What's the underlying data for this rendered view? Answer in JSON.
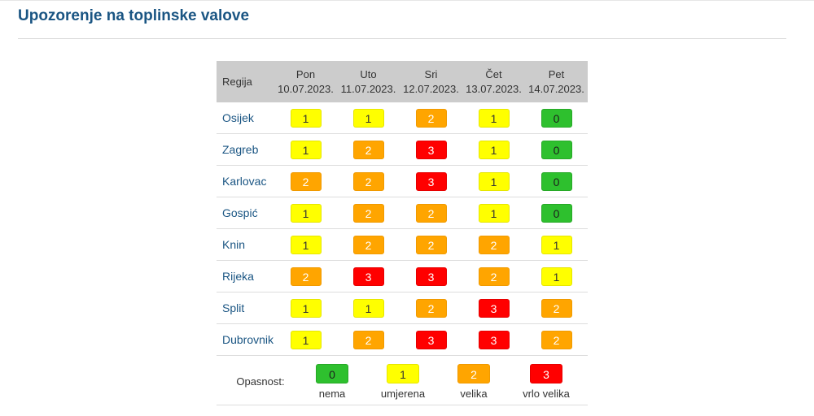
{
  "page": {
    "title": "Upozorenje na toplinske valove"
  },
  "table": {
    "region_header": "Regija",
    "days": [
      {
        "name": "Pon",
        "date": "10.07.2023."
      },
      {
        "name": "Uto",
        "date": "11.07.2023."
      },
      {
        "name": "Sri",
        "date": "12.07.2023."
      },
      {
        "name": "Čet",
        "date": "13.07.2023."
      },
      {
        "name": "Pet",
        "date": "14.07.2023."
      }
    ],
    "rows": [
      {
        "region": "Osijek",
        "levels": [
          "1",
          "1",
          "2",
          "1",
          "0"
        ]
      },
      {
        "region": "Zagreb",
        "levels": [
          "1",
          "2",
          "3",
          "1",
          "0"
        ]
      },
      {
        "region": "Karlovac",
        "levels": [
          "2",
          "2",
          "3",
          "1",
          "0"
        ]
      },
      {
        "region": "Gospić",
        "levels": [
          "1",
          "2",
          "2",
          "1",
          "0"
        ]
      },
      {
        "region": "Knin",
        "levels": [
          "1",
          "2",
          "2",
          "2",
          "1"
        ]
      },
      {
        "region": "Rijeka",
        "levels": [
          "2",
          "3",
          "3",
          "2",
          "1"
        ]
      },
      {
        "region": "Split",
        "levels": [
          "1",
          "1",
          "2",
          "3",
          "2"
        ]
      },
      {
        "region": "Dubrovnik",
        "levels": [
          "1",
          "2",
          "3",
          "3",
          "2"
        ]
      }
    ]
  },
  "legend": {
    "label": "Opasnost:",
    "items": [
      {
        "level": "0",
        "text": "nema"
      },
      {
        "level": "1",
        "text": "umjerena"
      },
      {
        "level": "2",
        "text": "velika"
      },
      {
        "level": "3",
        "text": "vrlo velika"
      }
    ]
  },
  "colors": {
    "level_0": "#2ec02e",
    "level_1": "#ffff00",
    "level_2": "#ffa500",
    "level_3": "#ff0000",
    "title": "#1a5583",
    "header_bg": "#cccccc"
  }
}
